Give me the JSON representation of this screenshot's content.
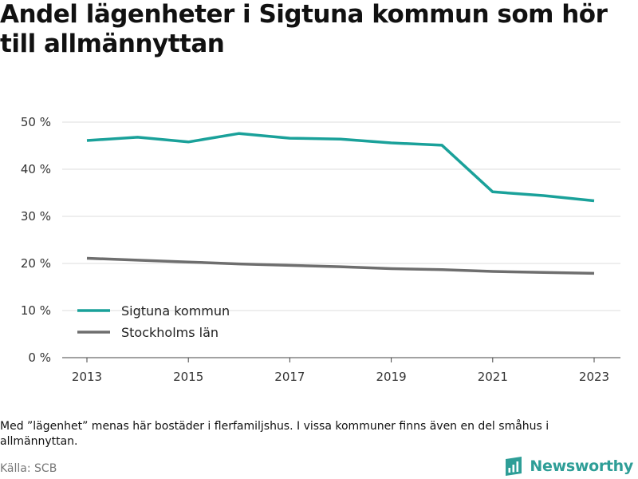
{
  "chart_data": {
    "type": "line",
    "title": "Andel lägenheter i Sigtuna kommun som hör till allmännyttan",
    "x": [
      2013,
      2014,
      2015,
      2016,
      2017,
      2018,
      2019,
      2020,
      2021,
      2022,
      2023
    ],
    "x_ticks": [
      "2013",
      "2015",
      "2017",
      "2019",
      "2021",
      "2023"
    ],
    "y_ticks": [
      "0 %",
      "10 %",
      "20 %",
      "30 %",
      "40 %",
      "50 %"
    ],
    "ylim": [
      0,
      50
    ],
    "grid": true,
    "legend_position": "bottom-left",
    "series": [
      {
        "name": "Sigtuna kommun",
        "color": "#1aa19a",
        "values": [
          46.1,
          46.8,
          45.8,
          47.6,
          46.6,
          46.4,
          45.6,
          45.1,
          35.2,
          34.4,
          33.3
        ]
      },
      {
        "name": "Stockholms län",
        "color": "#6e6e6e",
        "values": [
          21.1,
          20.7,
          20.3,
          19.9,
          19.6,
          19.3,
          18.9,
          18.7,
          18.3,
          18.1,
          17.9
        ]
      }
    ]
  },
  "note": "Med ”lägenhet” menas här bostäder i flerfamiljshus. I vissa kommuner finns även en del småhus i allmännyttan.",
  "source": "Källa: SCB",
  "brand": {
    "name": "Newsworthy",
    "icon": "newsworthy-logo-icon",
    "color": "#2e9e97"
  }
}
